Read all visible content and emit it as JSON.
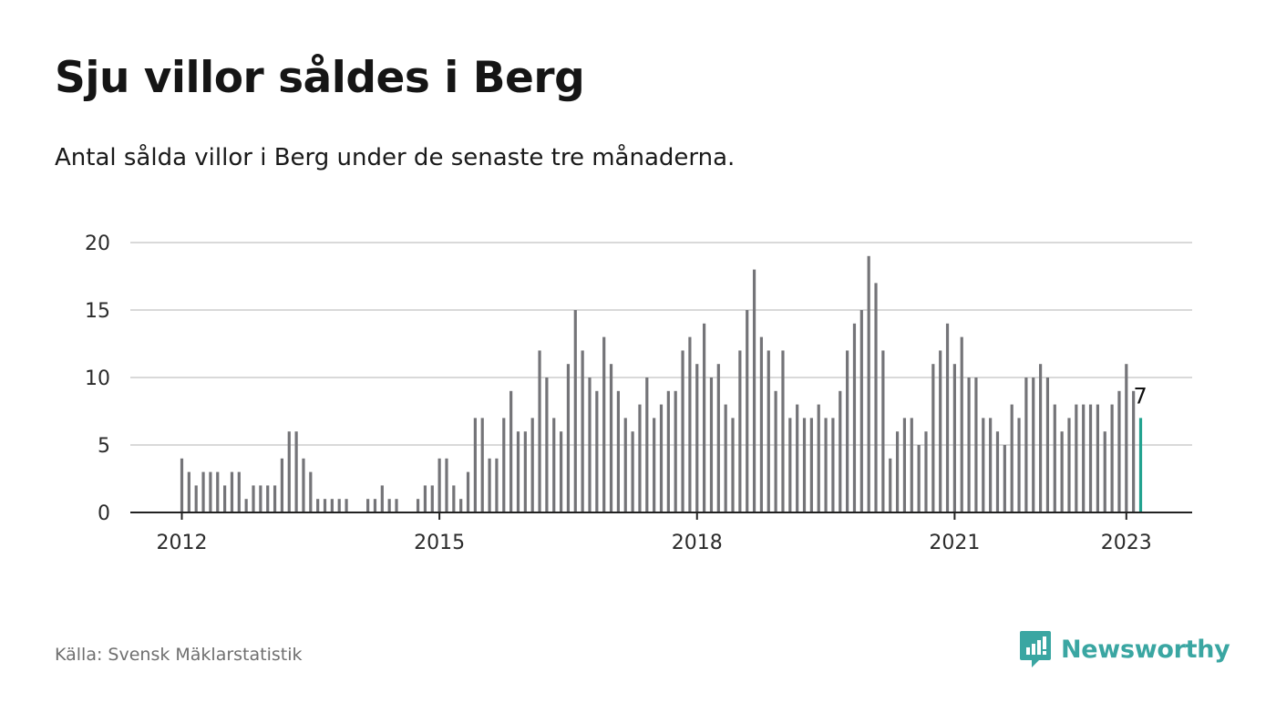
{
  "header": {
    "title": "Sju villor såldes i Berg",
    "subtitle": "Antal sålda villor i Berg under de senaste tre månaderna."
  },
  "footer": {
    "source": "Källa: Svensk Mäklarstatistik",
    "brand": "Newsworthy"
  },
  "colors": {
    "bar": "#747478",
    "highlight": "#22a28f",
    "grid": "#d9d9d9",
    "axis": "#222222",
    "brand": "#3aa6a2"
  },
  "chart_data": {
    "type": "bar",
    "x_start": "2012-01",
    "x_end": "2023-01",
    "x_ticks": [
      "2012",
      "2015",
      "2018",
      "2021",
      "2023"
    ],
    "y_ticks": [
      0,
      5,
      10,
      15,
      20
    ],
    "ylim": [
      0,
      20
    ],
    "grid": true,
    "values": [
      4,
      3,
      2,
      3,
      3,
      3,
      2,
      3,
      3,
      1,
      2,
      2,
      2,
      2,
      4,
      6,
      6,
      4,
      3,
      1,
      1,
      1,
      1,
      1,
      0,
      0,
      1,
      1,
      2,
      1,
      1,
      0,
      0,
      1,
      2,
      2,
      4,
      4,
      2,
      1,
      3,
      7,
      7,
      4,
      4,
      7,
      9,
      6,
      6,
      7,
      12,
      10,
      7,
      6,
      11,
      15,
      12,
      10,
      9,
      13,
      11,
      9,
      7,
      6,
      8,
      10,
      7,
      8,
      9,
      9,
      12,
      13,
      11,
      14,
      10,
      11,
      8,
      7,
      12,
      15,
      18,
      13,
      12,
      9,
      12,
      7,
      8,
      7,
      7,
      8,
      7,
      7,
      9,
      12,
      14,
      15,
      19,
      17,
      12,
      4,
      6,
      7,
      7,
      5,
      6,
      11,
      12,
      14,
      11,
      13,
      10,
      10,
      7,
      7,
      6,
      5,
      8,
      7,
      10,
      10,
      11,
      10,
      8,
      6,
      7,
      8,
      8,
      8,
      8,
      6,
      8,
      9,
      11,
      9,
      7
    ],
    "highlight_last": true,
    "last_label": "7"
  }
}
